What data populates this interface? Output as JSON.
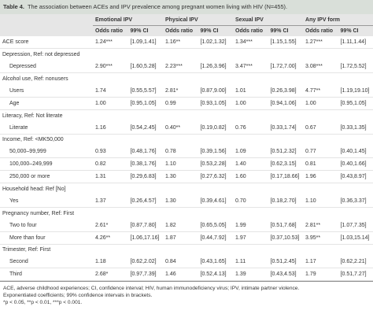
{
  "title": {
    "label": "Table 4.",
    "text": "The association between ACEs and IPV prevalence among pregnant women living with HIV (N=455)."
  },
  "table": {
    "groups": [
      "Emotional IPV",
      "Physical IPV",
      "Sexual IPV",
      "Any IPV form"
    ],
    "subheaders": [
      "Odds ratio",
      "99% CI",
      "Odds ratio",
      "99% CI",
      "Odds ratio",
      "99% CI",
      "Odds ratio",
      "99% CI"
    ],
    "rows": [
      [
        "ACE score",
        "1.24***",
        "[1.09,1.41]",
        "1.16**",
        "[1.02,1.32]",
        "1.34***",
        "[1.15,1.55]",
        "1.27***",
        "[1.11,1.44]"
      ],
      [
        "Depression, Ref: not depressed"
      ],
      [
        "Depressed",
        "2.90***",
        "[1.60,5.28]",
        "2.23***",
        "[1.26,3.96]",
        "3.47***",
        "[1.72,7.00]",
        "3.08***",
        "[1.72,5.52]"
      ],
      [
        "Alcohol use, Ref: nonusers"
      ],
      [
        "Users",
        "1.74",
        "[0.55,5.57]",
        "2.81*",
        "[0.87,9.00]",
        "1.01",
        "[0.26,3.98]",
        "4.77**",
        "[1.19,19.10]"
      ],
      [
        "Age",
        "1.00",
        "[0.95,1.05]",
        "0.99",
        "[0.93,1.05]",
        "1.00",
        "[0.94,1.06]",
        "1.00",
        "[0.95,1.05]"
      ],
      [
        "Literacy, Ref: Not literate"
      ],
      [
        "Literate",
        "1.16",
        "[0.54,2.45]",
        "0.40**",
        "[0.19,0.82]",
        "0.76",
        "[0.33,1.74]",
        "0.67",
        "[0.33,1.35]"
      ],
      [
        "Income, Ref: <MK50,000"
      ],
      [
        "50,000–99,999",
        "0.93",
        "[0.48,1.76]",
        "0.78",
        "[0.39,1.56]",
        "1.09",
        "[0.51,2.32]",
        "0.77",
        "[0.40,1.45]"
      ],
      [
        "100,000–249,999",
        "0.82",
        "[0.38,1.76]",
        "1.10",
        "[0.53,2.28]",
        "1.40",
        "[0.62,3.15]",
        "0.81",
        "[0.40,1.66]"
      ],
      [
        "250,000 or more",
        "1.31",
        "[0.29,6.83]",
        "1.30",
        "[0.27,6.32]",
        "1.60",
        "[0.17,18.66]",
        "1.96",
        "[0.43,8.97]"
      ],
      [
        "Household head: Ref [No]"
      ],
      [
        "Yes",
        "1.37",
        "[0.26,4.57]",
        "1.30",
        "[0.39,4.61]",
        "0.70",
        "[0.18,2.70]",
        "1.10",
        "[0.36,3.37]"
      ],
      [
        "Pregnancy number, Ref: First"
      ],
      [
        "Two to four",
        "2.61*",
        "[0.87,7.80]",
        "1.82",
        "[0.65,5.05]",
        "1.99",
        "[0.51,7.68]",
        "2.81**",
        "[1.07,7.35]"
      ],
      [
        "More than four",
        "4.26**",
        "[1.06,17.16]",
        "1.87",
        "[0.44,7.92]",
        "1.97",
        "[0.37,10.53]",
        "3.95**",
        "[1.03,15.14]"
      ],
      [
        "Trimester, Ref: First"
      ],
      [
        "Second",
        "1.18",
        "[0.62,2.02]",
        "0.84",
        "[0.43,1.65]",
        "1.11",
        "[0.51,2.45]",
        "1.17",
        "[0.62,2.21]"
      ],
      [
        "Third",
        "2.68*",
        "[0.97,7.39]",
        "1.46",
        "[0.52,4.13]",
        "1.39",
        "[0.43,4.53]",
        "1.79",
        "[0.51,7.27]"
      ]
    ]
  },
  "footnotes": [
    "ACE, adverse childhood experiences; CI, confidence interval; HIV, human immunodeficiency virus; IPV, intimate partner violence.",
    "Exponentiated coefficients; 99% confidence intervals in brackets.",
    "*p < 0.05, **p < 0.01, ***p < 0.001."
  ]
}
